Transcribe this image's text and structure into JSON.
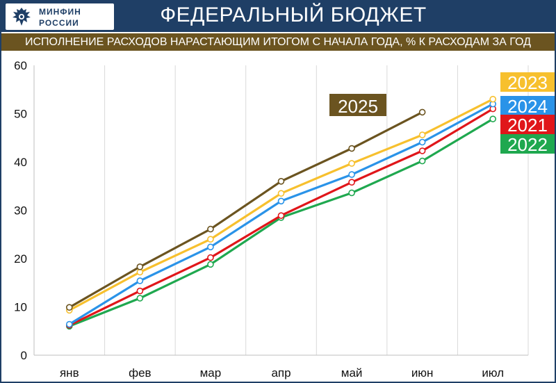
{
  "header": {
    "logo_line1": "МИНФИН",
    "logo_line2": "РОССИИ",
    "title": "ФЕДЕРАЛЬНЫЙ БЮДЖЕТ",
    "subtitle": "ИСПОЛНЕНИЕ РАСХОДОВ НАРАСТАЮЩИМ ИТОГОМ С НАЧАЛА ГОДА, % К РАСХОДАМ ЗА ГОД"
  },
  "colors": {
    "header_bg": "#1f3f66",
    "subtitle_bg": "#6b5420"
  },
  "chart_data": {
    "type": "line",
    "categories": [
      "янв",
      "фев",
      "мар",
      "апр",
      "май",
      "июн",
      "июл"
    ],
    "ylim": [
      0,
      60
    ],
    "yticks": [
      0,
      10,
      20,
      30,
      40,
      50,
      60
    ],
    "grid": "vertical",
    "series": [
      {
        "name": "2022",
        "color": "#1fa84f",
        "values": [
          6.0,
          11.8,
          18.8,
          28.5,
          33.6,
          40.2,
          48.9
        ]
      },
      {
        "name": "2021",
        "color": "#e0161a",
        "values": [
          6.2,
          13.3,
          20.2,
          28.9,
          35.8,
          42.3,
          51.0
        ]
      },
      {
        "name": "2024",
        "color": "#2a93e8",
        "values": [
          6.4,
          15.4,
          22.4,
          31.9,
          37.4,
          44.1,
          52.0
        ]
      },
      {
        "name": "2023",
        "color": "#f7c02e",
        "values": [
          9.3,
          17.2,
          24.0,
          33.5,
          39.7,
          45.6,
          53.0
        ]
      },
      {
        "name": "2025",
        "color": "#6b5420",
        "values": [
          9.9,
          18.3,
          26.1,
          36.0,
          42.8,
          50.3,
          null
        ]
      }
    ],
    "legend": [
      {
        "label": "2023",
        "color": "#f7c02e"
      },
      {
        "label": "2024",
        "color": "#2a93e8"
      },
      {
        "label": "2021",
        "color": "#e0161a"
      },
      {
        "label": "2022",
        "color": "#1fa84f"
      }
    ],
    "annotations": [
      {
        "label": "2025",
        "color": "#6b5420"
      }
    ]
  }
}
